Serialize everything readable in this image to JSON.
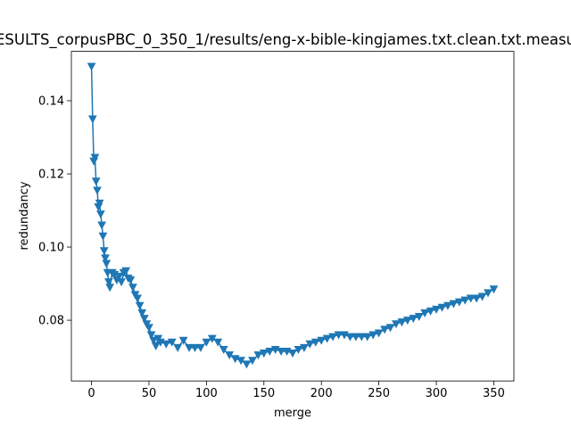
{
  "chart_data": {
    "type": "line",
    "title": "ESULTS_corpusPBC_0_350_1/results/eng-x-bible-kingjames.txt.clean.txt.measu",
    "xlabel": "merge",
    "ylabel": "redundancy",
    "x": [
      0,
      1,
      2,
      3,
      4,
      5,
      6,
      7,
      8,
      9,
      10,
      11,
      12,
      13,
      14,
      15,
      16,
      18,
      20,
      22,
      24,
      26,
      28,
      30,
      32,
      34,
      36,
      38,
      40,
      42,
      44,
      46,
      48,
      50,
      52,
      54,
      56,
      58,
      60,
      65,
      70,
      75,
      80,
      85,
      90,
      95,
      100,
      105,
      110,
      115,
      120,
      125,
      130,
      135,
      140,
      145,
      150,
      155,
      160,
      165,
      170,
      175,
      180,
      185,
      190,
      195,
      200,
      205,
      210,
      215,
      220,
      225,
      230,
      235,
      240,
      245,
      250,
      255,
      260,
      265,
      270,
      275,
      280,
      285,
      290,
      295,
      300,
      305,
      310,
      315,
      320,
      325,
      330,
      335,
      340,
      345,
      350
    ],
    "series": [
      {
        "name": "redundancy",
        "color": "#1f77b4",
        "values": [
          0.1494,
          0.135,
          0.1235,
          0.1245,
          0.118,
          0.1155,
          0.111,
          0.112,
          0.109,
          0.106,
          0.103,
          0.099,
          0.097,
          0.0955,
          0.093,
          0.0905,
          0.089,
          0.093,
          0.0925,
          0.091,
          0.092,
          0.0905,
          0.093,
          0.0935,
          0.0915,
          0.091,
          0.089,
          0.087,
          0.086,
          0.084,
          0.082,
          0.0805,
          0.079,
          0.078,
          0.076,
          0.0745,
          0.073,
          0.075,
          0.074,
          0.0735,
          0.074,
          0.0725,
          0.0745,
          0.0725,
          0.0725,
          0.0725,
          0.074,
          0.075,
          0.074,
          0.072,
          0.0705,
          0.0695,
          0.069,
          0.068,
          0.069,
          0.0705,
          0.071,
          0.0715,
          0.072,
          0.0715,
          0.0715,
          0.071,
          0.072,
          0.0725,
          0.0735,
          0.074,
          0.0745,
          0.075,
          0.0755,
          0.076,
          0.076,
          0.0755,
          0.0755,
          0.0755,
          0.0755,
          0.076,
          0.0765,
          0.0775,
          0.078,
          0.079,
          0.0795,
          0.08,
          0.0805,
          0.081,
          0.082,
          0.0825,
          0.083,
          0.0835,
          0.084,
          0.0845,
          0.085,
          0.0855,
          0.086,
          0.086,
          0.0865,
          0.0875,
          0.0885
        ]
      }
    ],
    "xlim": [
      -17.5,
      367.5
    ],
    "ylim": [
      0.0634,
      0.1535
    ],
    "xticks": [
      0,
      50,
      100,
      150,
      200,
      250,
      300,
      350
    ],
    "yticks": [
      0.08,
      {
        "value": 0.1,
        "label": "0.10"
      },
      0.12,
      0.14
    ],
    "marker": "triangle_down"
  }
}
